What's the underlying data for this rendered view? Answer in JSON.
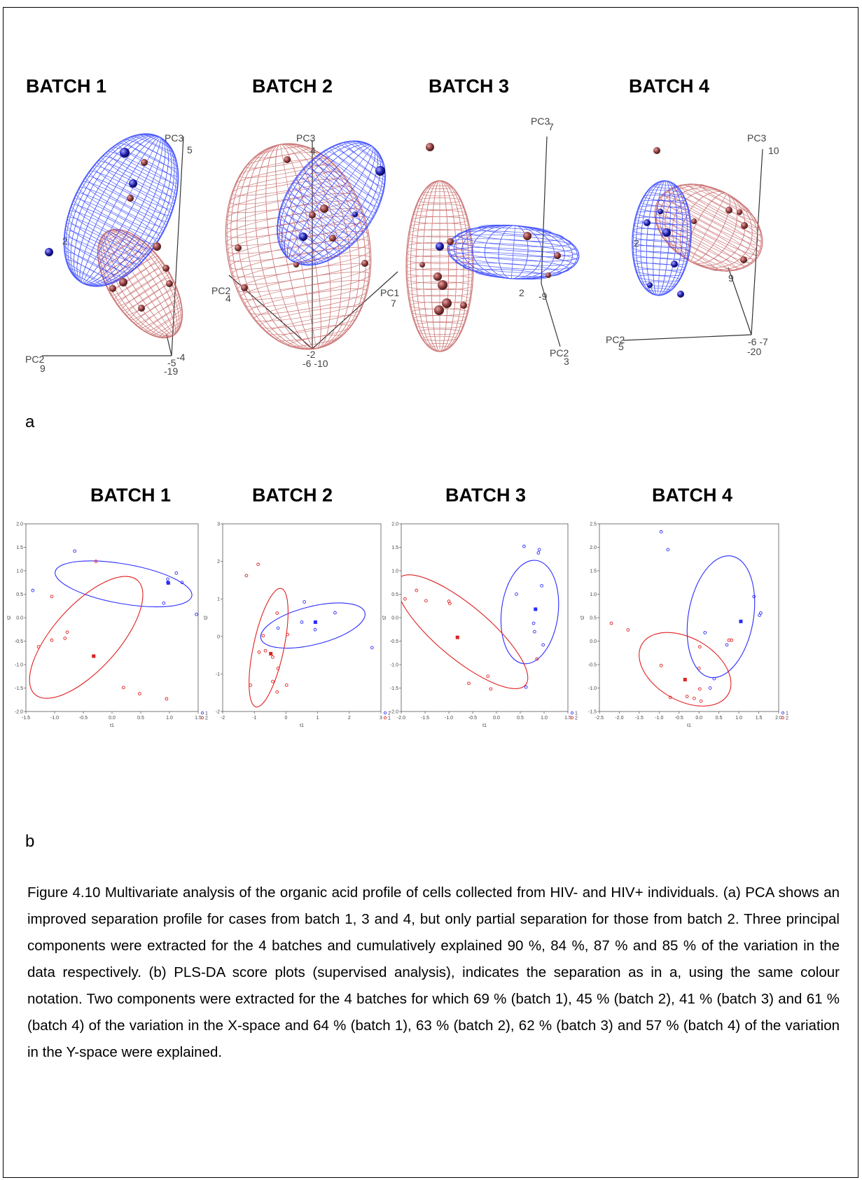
{
  "section_a": {
    "batch_titles": [
      "BATCH 1",
      "BATCH 2",
      "BATCH 3",
      "BATCH 4"
    ],
    "panel_label": "a",
    "plots": [
      {
        "axis_labels": [
          {
            "text": "PC3"
          },
          {
            "text": "5"
          },
          {
            "text": "2"
          },
          {
            "text": "PC2"
          },
          {
            "text": "9"
          },
          {
            "text": "-4"
          },
          {
            "text": "-5"
          },
          {
            "text": "-19"
          }
        ]
      },
      {
        "axis_labels": [
          {
            "text": "PC3"
          },
          {
            "text": "4"
          },
          {
            "text": "PC2"
          },
          {
            "text": "4"
          },
          {
            "text": "PC1"
          },
          {
            "text": "7"
          },
          {
            "text": "-2"
          },
          {
            "text": "-6 -10"
          }
        ]
      },
      {
        "axis_labels": [
          {
            "text": "PC3"
          },
          {
            "text": "7"
          },
          {
            "text": "2"
          },
          {
            "text": "-9"
          },
          {
            "text": "PC2"
          },
          {
            "text": "3"
          }
        ]
      },
      {
        "axis_labels": [
          {
            "text": "PC3"
          },
          {
            "text": "10"
          },
          {
            "text": "2"
          },
          {
            "text": "9"
          },
          {
            "text": "PC2"
          },
          {
            "text": "5"
          },
          {
            "text": "-6 -7"
          },
          {
            "text": "-20"
          }
        ]
      }
    ]
  },
  "section_b": {
    "batch_titles": [
      "BATCH 1",
      "BATCH 2",
      "BATCH 3",
      "BATCH 4"
    ],
    "panel_label": "b"
  },
  "caption": "Figure 4.10 Multivariate analysis of the organic acid profile of cells collected from HIV- and HIV+ individuals. (a) PCA shows an improved separation profile for cases from batch 1, 3 and 4, but only partial separation for those from batch 2. Three principal components were extracted for the 4 batches and cumulatively explained 90 %, 84 %, 87 % and 85 % of the variation in the data respectively. (b) PLS-DA score plots (supervised analysis), indicates the separation as in a, using the same colour notation. Two components were extracted for the 4 batches for which 69 % (batch 1), 45 % (batch 2), 41 % (batch 3) and 61 % (batch 4) of the variation in the X-space and 64 % (batch 1), 63 % (batch 2), 62 % (batch 3) and 57 % (batch 4) of the variation in the Y-space were explained.",
  "colors": {
    "blue": "#2b2bff",
    "red": "#e02020",
    "mesh_blue": "#2a3cff",
    "mesh_red": "#c46060"
  },
  "chart_data": [
    {
      "type": "scatter",
      "batch": "BATCH 1",
      "xlabel": "t1",
      "ylabel": "t2",
      "xlim": [
        -1.5,
        1.5
      ],
      "ylim": [
        -2.0,
        2.0
      ],
      "xticks": [
        "-1.5",
        "-1.0",
        "-0.5",
        "0.0",
        "0.5",
        "1.0",
        "1.5"
      ],
      "yticks": [
        "-2.0",
        "-1.5",
        "-1.0",
        "-0.5",
        "0.0",
        "0.5",
        "1.0",
        "1.5",
        "2.0"
      ],
      "legend": [
        "1",
        "2"
      ],
      "series": [
        {
          "name": "1",
          "color": "blue",
          "points": [
            [
              -0.65,
              1.42
            ],
            [
              -1.38,
              0.58
            ],
            [
              0.97,
              0.82
            ],
            [
              0.97,
              0.75
            ],
            [
              1.12,
              0.95
            ],
            [
              1.22,
              0.75
            ],
            [
              0.9,
              0.31
            ],
            [
              1.47,
              0.07
            ]
          ],
          "centroid": [
            0.98,
            0.74
          ],
          "ellipse": {
            "center": [
              0.2,
              0.72
            ],
            "rx": 1.33,
            "ry": 0.38,
            "angle": -10
          }
        },
        {
          "name": "2",
          "color": "red",
          "points": [
            [
              -0.28,
              1.2
            ],
            [
              -1.05,
              0.45
            ],
            [
              -1.28,
              -0.62
            ],
            [
              -1.05,
              -0.48
            ],
            [
              -0.78,
              -0.31
            ],
            [
              -0.82,
              -0.44
            ],
            [
              0.2,
              -1.49
            ],
            [
              0.48,
              -1.62
            ],
            [
              0.95,
              -1.73
            ]
          ],
          "centroid": [
            -0.32,
            -0.82
          ],
          "ellipse": {
            "center": [
              -0.45,
              -0.42
            ],
            "rx": 1.47,
            "ry": 0.62,
            "angle": 48
          }
        }
      ]
    },
    {
      "type": "scatter",
      "batch": "BATCH 2",
      "xlabel": "t1",
      "ylabel": "t2",
      "xlim": [
        -2,
        3
      ],
      "ylim": [
        -2,
        3
      ],
      "xticks": [
        "-2",
        "-1",
        "0",
        "1",
        "2",
        "3"
      ],
      "yticks": [
        "-2",
        "-1",
        "0",
        "1",
        "2",
        "3"
      ],
      "legend": [
        "2",
        "1"
      ],
      "series": [
        {
          "name": "2",
          "color": "blue",
          "points": [
            [
              -0.25,
              0.22
            ],
            [
              0.5,
              0.38
            ],
            [
              0.58,
              0.92
            ],
            [
              0.92,
              0.18
            ],
            [
              1.55,
              0.63
            ],
            [
              2.72,
              -0.3
            ]
          ],
          "centroid": [
            0.93,
            0.38
          ],
          "ellipse": {
            "center": [
              0.85,
              0.29
            ],
            "rx": 1.55,
            "ry": 0.55,
            "angle": 14
          }
        },
        {
          "name": "1",
          "color": "red",
          "points": [
            [
              -1.25,
              1.62
            ],
            [
              -0.88,
              1.92
            ],
            [
              -0.28,
              0.62
            ],
            [
              -0.72,
              0.02
            ],
            [
              -0.65,
              -0.38
            ],
            [
              -0.85,
              -0.42
            ],
            [
              -0.42,
              -0.55
            ],
            [
              -0.25,
              -0.85
            ],
            [
              -0.42,
              -1.2
            ],
            [
              -0.28,
              -1.48
            ],
            [
              -1.12,
              -1.3
            ],
            [
              0.02,
              -1.3
            ],
            [
              0.05,
              0.05
            ]
          ],
          "centroid": [
            -0.48,
            -0.46
          ],
          "ellipse": {
            "center": [
              -0.55,
              -0.3
            ],
            "rx": 1.75,
            "ry": 0.44,
            "angle": 78
          }
        }
      ]
    },
    {
      "type": "scatter",
      "batch": "BATCH 3",
      "xlabel": "t1",
      "ylabel": "t2",
      "xlim": [
        -2.0,
        1.5
      ],
      "ylim": [
        -2.0,
        2.0
      ],
      "xticks": [
        "-2.0",
        "-1.5",
        "-1.0",
        "-0.5",
        "0.0",
        "0.5",
        "1.0",
        "1.5"
      ],
      "yticks": [
        "-2.0",
        "-1.5",
        "-1.0",
        "-0.5",
        "0.0",
        "0.5",
        "1.0",
        "1.5",
        "2.0"
      ],
      "legend": [
        "1",
        "2"
      ],
      "series": [
        {
          "name": "1",
          "color": "blue",
          "points": [
            [
              0.58,
              1.52
            ],
            [
              0.9,
              1.45
            ],
            [
              0.88,
              1.38
            ],
            [
              0.95,
              0.68
            ],
            [
              0.42,
              0.5
            ],
            [
              0.78,
              -0.12
            ],
            [
              0.8,
              -0.3
            ],
            [
              0.98,
              -0.58
            ],
            [
              0.62,
              -1.48
            ]
          ],
          "centroid": [
            0.82,
            0.18
          ],
          "ellipse": {
            "center": [
              0.7,
              0.12
            ],
            "rx": 1.1,
            "ry": 0.6,
            "angle": 83
          }
        },
        {
          "name": "2",
          "color": "red",
          "points": [
            [
              -1.92,
              0.4
            ],
            [
              -1.68,
              0.58
            ],
            [
              -1.48,
              0.36
            ],
            [
              -1.0,
              0.35
            ],
            [
              -0.98,
              0.3
            ],
            [
              -0.58,
              -1.4
            ],
            [
              -0.18,
              -1.25
            ],
            [
              -0.12,
              -1.52
            ],
            [
              0.85,
              -0.88
            ]
          ],
          "centroid": [
            -0.82,
            -0.42
          ],
          "ellipse": {
            "center": [
              -0.72,
              -0.3
            ],
            "rx": 1.75,
            "ry": 0.56,
            "angle": -40
          }
        }
      ]
    },
    {
      "type": "scatter",
      "batch": "BATCH 4",
      "xlabel": "t1",
      "ylabel": "t2",
      "xlim": [
        -2.5,
        2.0
      ],
      "ylim": [
        -1.5,
        2.5
      ],
      "xticks": [
        "-2.5",
        "-2.0",
        "-1.5",
        "-1.0",
        "-0.5",
        "0.0",
        "0.5",
        "1.0",
        "1.5",
        "2.0"
      ],
      "yticks": [
        "-1.5",
        "-1.0",
        "-0.5",
        "0.0",
        "0.5",
        "1.0",
        "1.5",
        "2.0",
        "2.5"
      ],
      "legend": [
        "1",
        "2"
      ],
      "series": [
        {
          "name": "1",
          "color": "blue",
          "points": [
            [
              -0.95,
              2.33
            ],
            [
              -0.78,
              1.95
            ],
            [
              1.38,
              0.95
            ],
            [
              1.52,
              0.55
            ],
            [
              1.55,
              0.6
            ],
            [
              0.15,
              0.18
            ],
            [
              0.7,
              -0.08
            ],
            [
              0.28,
              -1.0
            ],
            [
              0.38,
              -0.8
            ]
          ],
          "centroid": [
            1.05,
            0.42
          ],
          "ellipse": {
            "center": [
              0.55,
              0.52
            ],
            "rx": 1.42,
            "ry": 0.75,
            "angle": 80
          }
        },
        {
          "name": "2",
          "color": "red",
          "points": [
            [
              -2.2,
              0.38
            ],
            [
              -1.78,
              0.24
            ],
            [
              -0.95,
              -0.52
            ],
            [
              -0.72,
              -1.2
            ],
            [
              -0.3,
              -1.18
            ],
            [
              -0.12,
              -1.22
            ],
            [
              0.02,
              -0.12
            ],
            [
              0.0,
              -0.58
            ],
            [
              0.02,
              -1.02
            ],
            [
              0.05,
              -1.28
            ],
            [
              0.75,
              0.02
            ],
            [
              0.82,
              0.02
            ]
          ],
          "centroid": [
            -0.35,
            -0.82
          ],
          "ellipse": {
            "center": [
              -0.35,
              -0.6
            ],
            "rx": 1.15,
            "ry": 0.72,
            "angle": -30
          }
        }
      ]
    }
  ]
}
